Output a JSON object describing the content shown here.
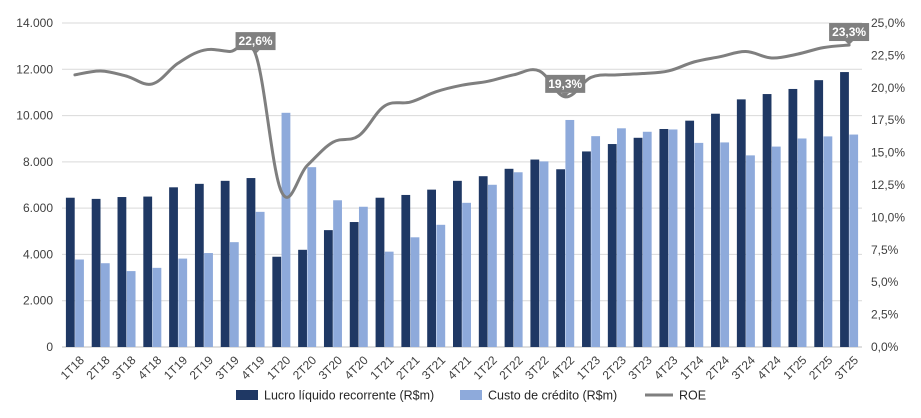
{
  "chart_data": {
    "type": "bar",
    "categories": [
      "1T18",
      "2T18",
      "3T18",
      "4T18",
      "1T19",
      "2T19",
      "3T19",
      "4T19",
      "1T20",
      "2T20",
      "3T20",
      "4T20",
      "1T21",
      "2T21",
      "3T21",
      "4T21",
      "1T22",
      "2T22",
      "3T22",
      "4T22",
      "1T23",
      "2T23",
      "3T23",
      "4T23",
      "1T24",
      "2T24",
      "3T24",
      "4T24",
      "1T25",
      "2T25",
      "3T25"
    ],
    "series": [
      {
        "name": "Lucro líquido recorrente (R$m)",
        "axis": "left",
        "kind": "bar",
        "color": "#1f3864",
        "values": [
          6450,
          6400,
          6480,
          6500,
          6900,
          7050,
          7180,
          7300,
          3900,
          4200,
          5050,
          5400,
          6450,
          6570,
          6800,
          7180,
          7380,
          7700,
          8100,
          7680,
          8450,
          8770,
          9040,
          9420,
          9780,
          10080,
          10700,
          10930,
          11150,
          11530,
          11880
        ]
      },
      {
        "name": "Custo de crédito (R$m)",
        "axis": "left",
        "kind": "bar",
        "color": "#8eaadb",
        "values": [
          3780,
          3620,
          3280,
          3420,
          3820,
          4060,
          4530,
          5840,
          10120,
          7770,
          6340,
          6060,
          4120,
          4740,
          5280,
          6230,
          7010,
          7550,
          8020,
          9810,
          9110,
          9450,
          9300,
          9400,
          8820,
          8840,
          8280,
          8660,
          9010,
          9100,
          9180
        ]
      },
      {
        "name": "ROE",
        "axis": "right",
        "kind": "line",
        "color": "#7f7f7f",
        "values": [
          21.0,
          21.3,
          20.9,
          20.3,
          21.9,
          22.9,
          22.8,
          22.6,
          12.0,
          14.0,
          15.8,
          16.3,
          18.6,
          18.9,
          19.7,
          20.2,
          20.5,
          21.0,
          21.3,
          19.3,
          20.8,
          21.0,
          21.1,
          21.3,
          22.0,
          22.4,
          22.8,
          22.3,
          22.6,
          23.1,
          23.3
        ]
      }
    ],
    "ylim_left": [
      0,
      14000
    ],
    "ylim_right": [
      0,
      25
    ],
    "yticks_left": [
      "0",
      "2.000",
      "4.000",
      "6.000",
      "8.000",
      "10.000",
      "12.000",
      "14.000"
    ],
    "yticks_right": [
      "0,0%",
      "2,5%",
      "5,0%",
      "7,5%",
      "10,0%",
      "12,5%",
      "15,0%",
      "17,5%",
      "20,0%",
      "22,5%",
      "25,0%"
    ],
    "annotations": [
      {
        "index": 7,
        "text": "22,6%"
      },
      {
        "index": 19,
        "text": "19,3%"
      },
      {
        "index": 30,
        "text": "23,3%"
      }
    ],
    "legend_position": "bottom",
    "grid": true
  },
  "legend": {
    "items": [
      {
        "label": "Lucro líquido recorrente (R$m)",
        "color": "#1f3864",
        "kind": "bar"
      },
      {
        "label": "Custo de crédito (R$m)",
        "color": "#8eaadb",
        "kind": "bar"
      },
      {
        "label": "ROE",
        "color": "#7f7f7f",
        "kind": "line"
      }
    ]
  }
}
